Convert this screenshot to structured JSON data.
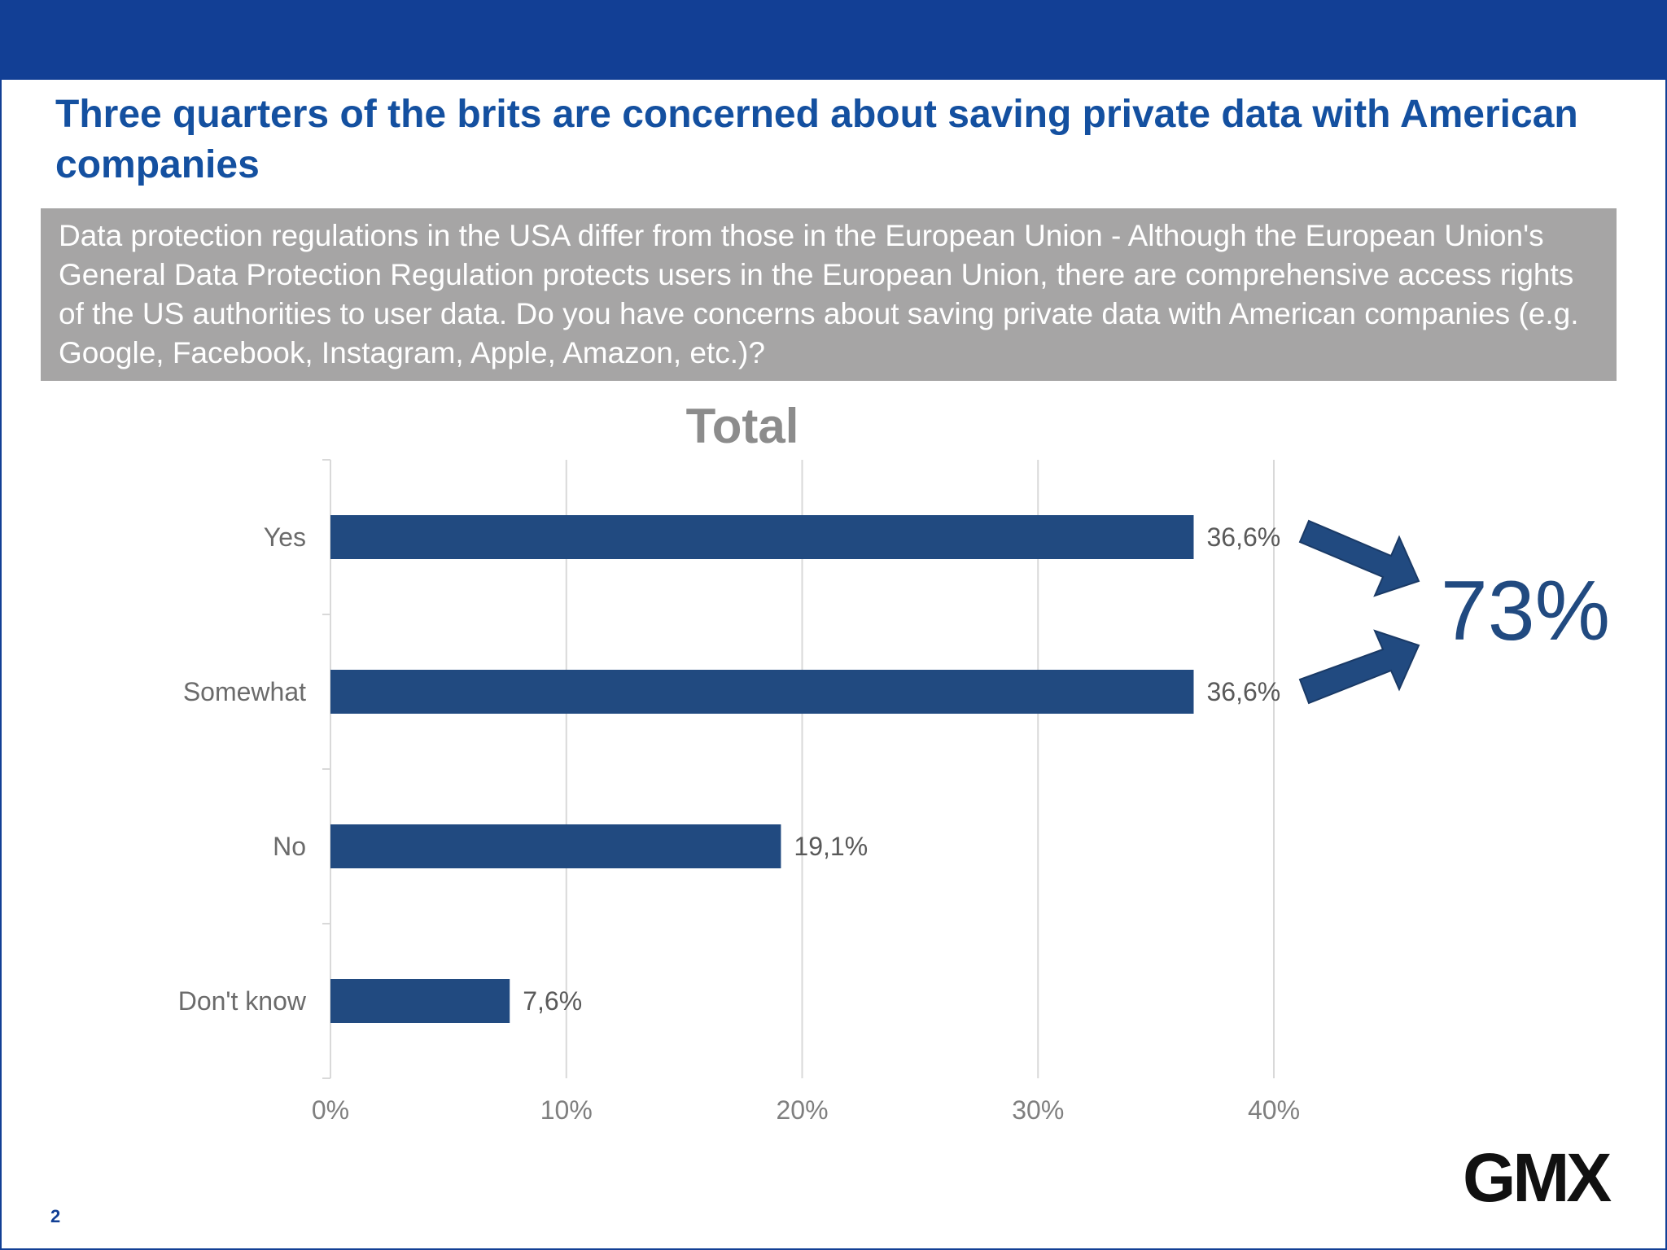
{
  "header": {
    "title": "Three quarters of the brits are concerned about saving private data with American companies"
  },
  "question": {
    "text": "Data protection regulations in the USA differ from those in the European Union - Although the European Union's General Data Protection Regulation protects users in the European Union, there are comprehensive access rights of the US authorities to user data. Do you have concerns about saving private data with American companies (e.g. Google, Facebook, Instagram, Apple, Amazon, etc.)?"
  },
  "chart_data": {
    "type": "bar",
    "orientation": "horizontal",
    "title": "Total",
    "categories": [
      "Yes",
      "Somewhat",
      "No",
      "Don't know"
    ],
    "values": [
      36.6,
      36.6,
      19.1,
      7.6
    ],
    "data_labels": [
      "36,6%",
      "36,6%",
      "19,1%",
      "7,6%"
    ],
    "xlim": [
      0,
      40
    ],
    "x_ticks": [
      0,
      10,
      20,
      30,
      40
    ],
    "x_tick_labels": [
      "0%",
      "10%",
      "20%",
      "30%",
      "40%"
    ],
    "grid": true,
    "bar_color": "#214a80",
    "annotation": {
      "text": "73%",
      "note_targets": [
        "Yes",
        "Somewhat"
      ]
    }
  },
  "footer": {
    "page_number": "2",
    "logo_text": "GMX"
  }
}
